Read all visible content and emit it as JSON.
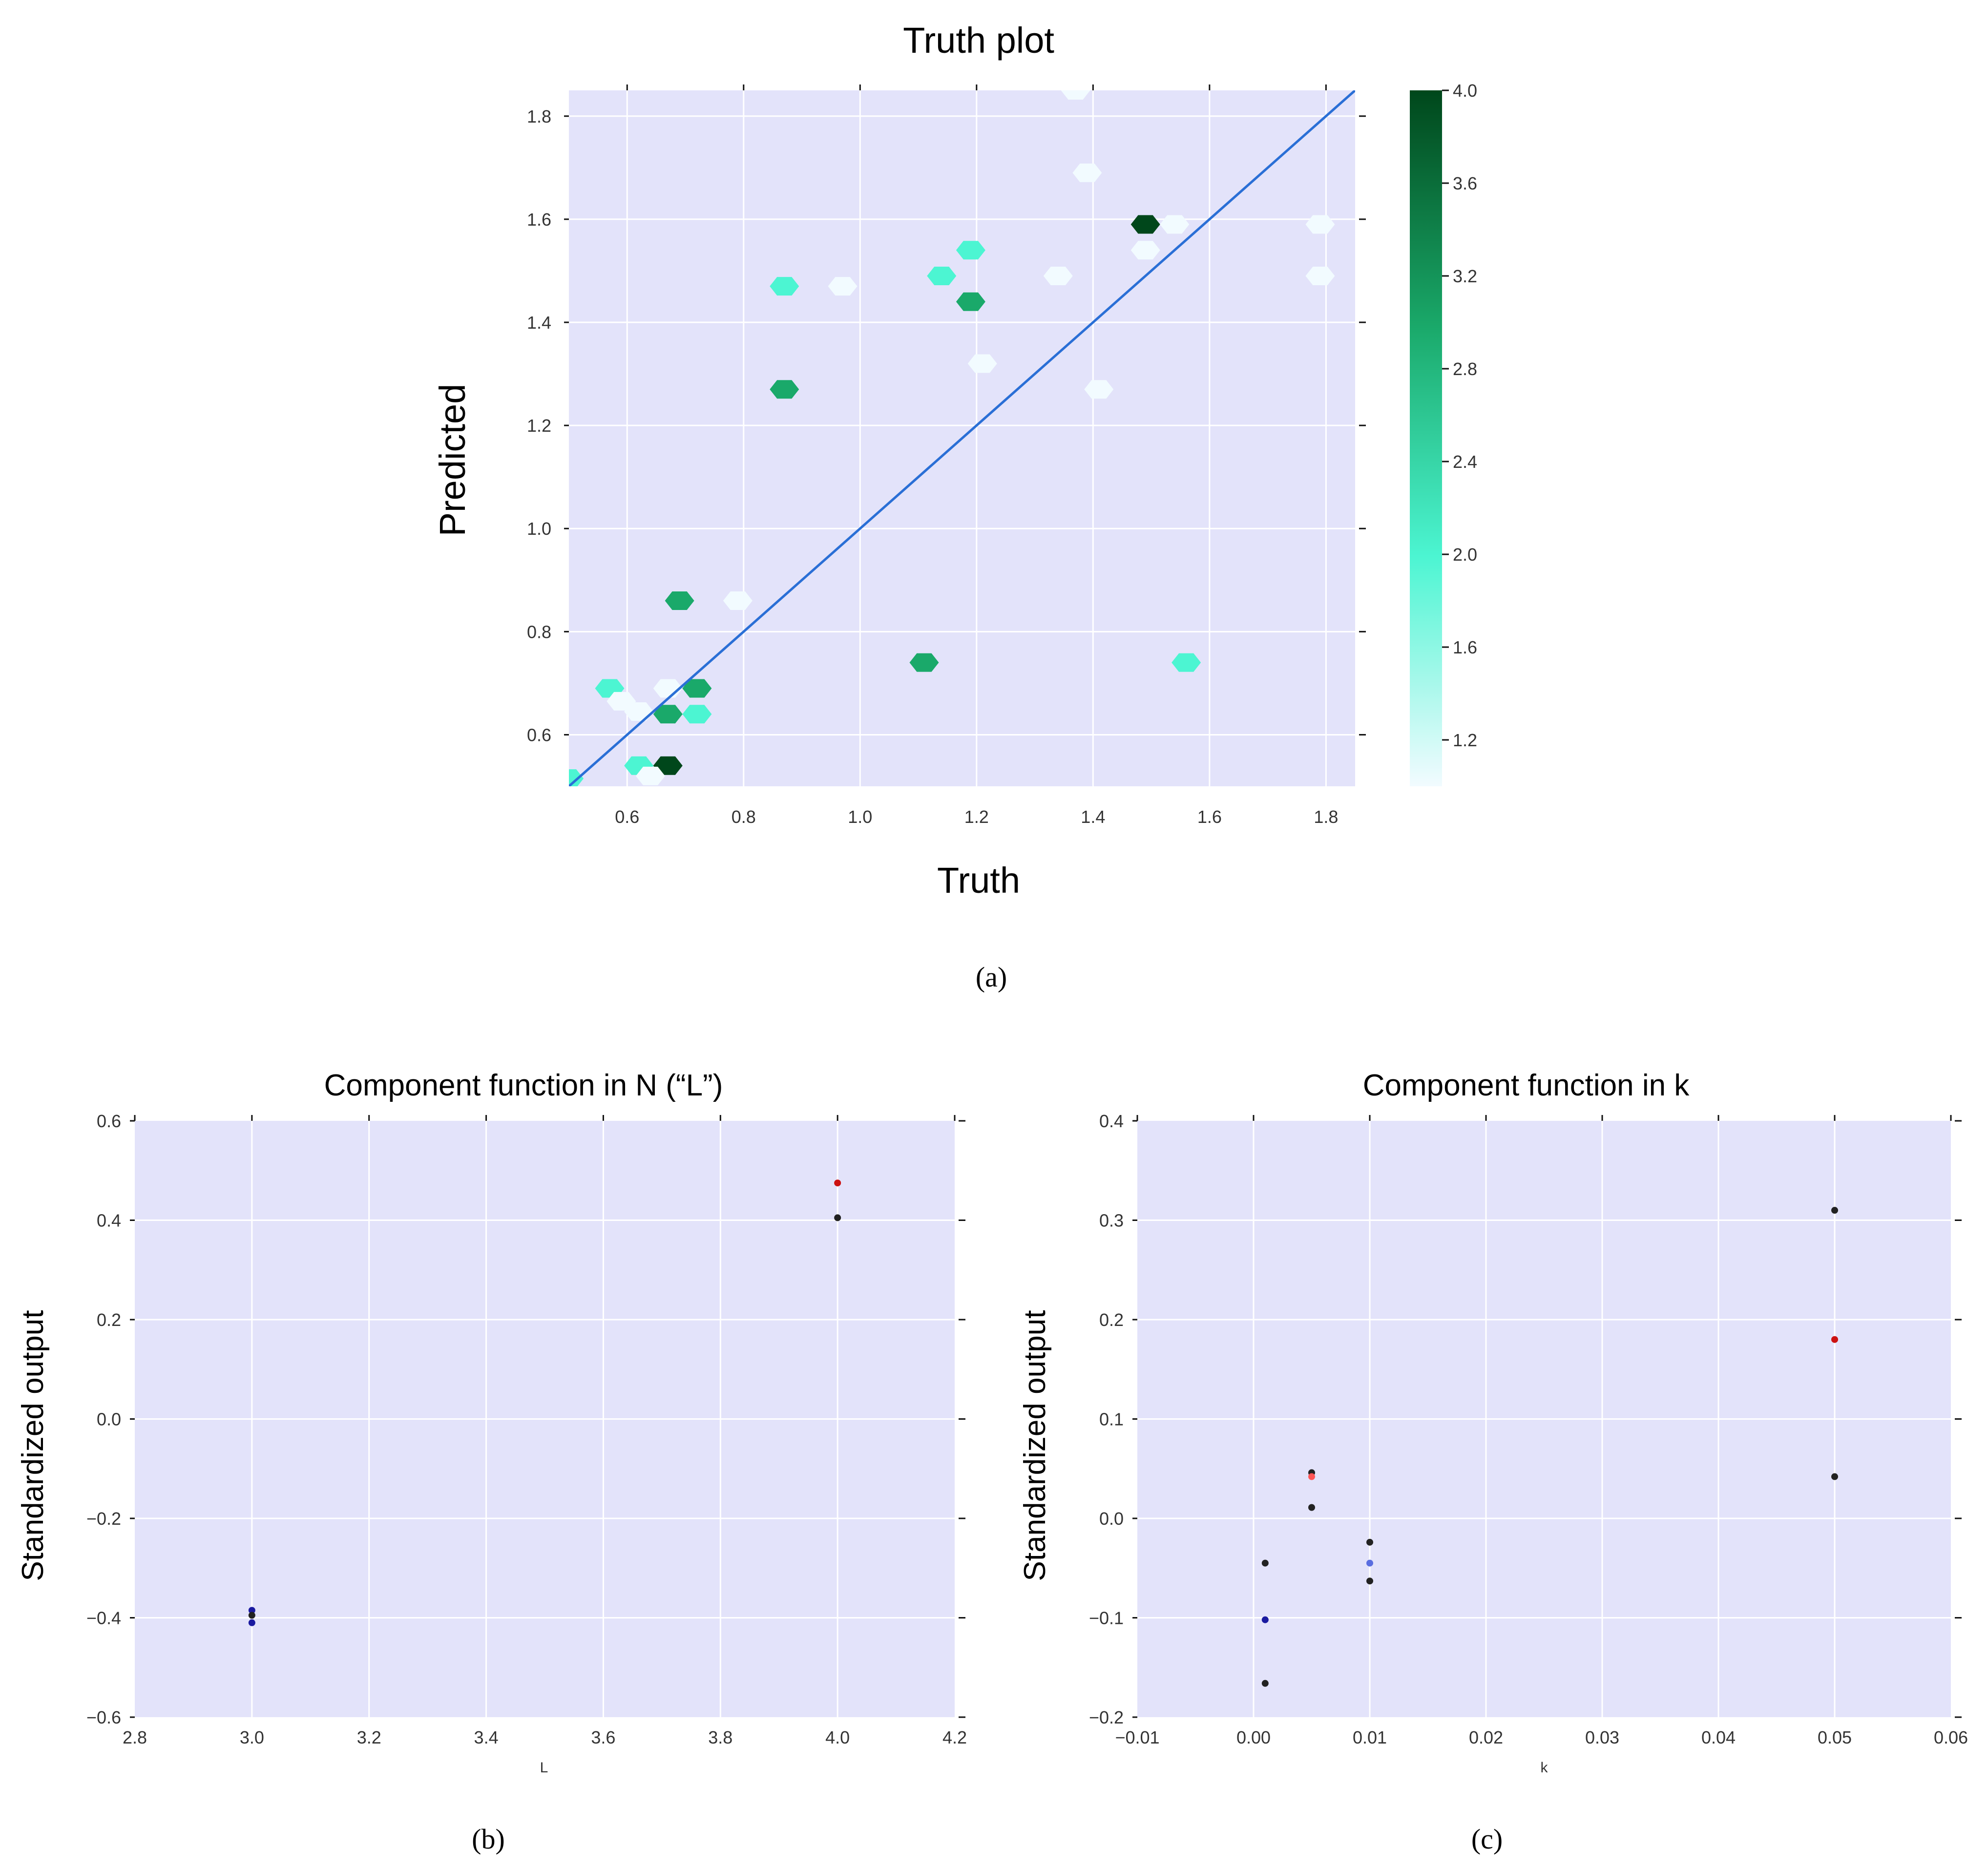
{
  "colors": {
    "plot_bg": "#e3e3fa",
    "grid": "#ffffff",
    "diag_line": "#2a6fd6",
    "cmap_low": "#f2fbff",
    "cmap_mid": "#4cf5d2",
    "cmap_q": "#1aa96a",
    "cmap_high": "#00471b",
    "pt_red": "#cc1111",
    "pt_black": "#222222",
    "pt_blue": "#1a1aa0",
    "pt_lightblue": "#5a6ee0",
    "pt_pink": "#ff5555"
  },
  "chart_data": [
    {
      "id": "a",
      "type": "hexbin",
      "title": "Truth plot",
      "xlabel": "Truth",
      "ylabel": "Predicted",
      "caption": "(a)",
      "xlim": [
        0.5,
        1.85
      ],
      "ylim": [
        0.5,
        1.85
      ],
      "xticks": [
        "0.6",
        "0.8",
        "1.0",
        "1.2",
        "1.4",
        "1.6",
        "1.8"
      ],
      "yticks": [
        "0.6",
        "0.8",
        "1.0",
        "1.2",
        "1.4",
        "1.6",
        "1.8"
      ],
      "identity_line": true,
      "colorbar": {
        "min": 1.0,
        "max": 4.0,
        "ticks": [
          "1.2",
          "1.6",
          "2.0",
          "2.4",
          "2.8",
          "3.2",
          "3.6",
          "4.0"
        ]
      },
      "points": [
        {
          "x": 1.37,
          "y": 1.85,
          "count": 1
        },
        {
          "x": 1.39,
          "y": 1.69,
          "count": 1
        },
        {
          "x": 1.49,
          "y": 1.59,
          "count": 4
        },
        {
          "x": 1.54,
          "y": 1.59,
          "count": 1
        },
        {
          "x": 1.79,
          "y": 1.59,
          "count": 1
        },
        {
          "x": 1.49,
          "y": 1.54,
          "count": 1
        },
        {
          "x": 1.19,
          "y": 1.54,
          "count": 2
        },
        {
          "x": 1.14,
          "y": 1.49,
          "count": 2
        },
        {
          "x": 1.34,
          "y": 1.49,
          "count": 1
        },
        {
          "x": 1.79,
          "y": 1.49,
          "count": 1
        },
        {
          "x": 0.87,
          "y": 1.47,
          "count": 2
        },
        {
          "x": 0.97,
          "y": 1.47,
          "count": 1
        },
        {
          "x": 1.19,
          "y": 1.44,
          "count": 3
        },
        {
          "x": 1.21,
          "y": 1.32,
          "count": 1
        },
        {
          "x": 0.87,
          "y": 1.27,
          "count": 3
        },
        {
          "x": 1.41,
          "y": 1.27,
          "count": 1
        },
        {
          "x": 0.69,
          "y": 0.86,
          "count": 3
        },
        {
          "x": 0.79,
          "y": 0.86,
          "count": 1
        },
        {
          "x": 1.11,
          "y": 0.74,
          "count": 3
        },
        {
          "x": 1.56,
          "y": 0.74,
          "count": 2
        },
        {
          "x": 0.57,
          "y": 0.69,
          "count": 2
        },
        {
          "x": 0.67,
          "y": 0.69,
          "count": 1
        },
        {
          "x": 0.72,
          "y": 0.69,
          "count": 3
        },
        {
          "x": 0.59,
          "y": 0.665,
          "count": 1
        },
        {
          "x": 0.62,
          "y": 0.645,
          "count": 1
        },
        {
          "x": 0.67,
          "y": 0.64,
          "count": 3
        },
        {
          "x": 0.72,
          "y": 0.64,
          "count": 2
        },
        {
          "x": 0.62,
          "y": 0.54,
          "count": 2
        },
        {
          "x": 0.67,
          "y": 0.54,
          "count": 4
        },
        {
          "x": 0.64,
          "y": 0.52,
          "count": 1
        },
        {
          "x": 0.5,
          "y": 0.515,
          "count": 2
        }
      ]
    },
    {
      "id": "b",
      "type": "scatter",
      "title": "Component function in N (“L”)",
      "xlabel": "L",
      "ylabel": "Standardized output",
      "caption": "(b)",
      "xlim": [
        2.8,
        4.2
      ],
      "ylim": [
        -0.6,
        0.6
      ],
      "xticks": [
        "2.8",
        "3.0",
        "3.2",
        "3.4",
        "3.6",
        "3.8",
        "4.0",
        "4.2"
      ],
      "yticks": [
        "−0.6",
        "−0.4",
        "−0.2",
        "0.0",
        "0.2",
        "0.4",
        "0.6"
      ],
      "points": [
        {
          "x": 4.0,
          "y": 0.475,
          "color": "pt_red"
        },
        {
          "x": 4.0,
          "y": 0.405,
          "color": "pt_black"
        },
        {
          "x": 3.0,
          "y": -0.385,
          "color": "pt_blue"
        },
        {
          "x": 3.0,
          "y": -0.395,
          "color": "pt_black"
        },
        {
          "x": 3.0,
          "y": -0.41,
          "color": "pt_blue"
        }
      ]
    },
    {
      "id": "c",
      "type": "scatter",
      "title": "Component function in k",
      "xlabel": "k",
      "ylabel": "Standardized output",
      "caption": "(c)",
      "xlim": [
        -0.01,
        0.06
      ],
      "ylim": [
        -0.2,
        0.4
      ],
      "xticks": [
        "−0.01",
        "0.00",
        "0.01",
        "0.02",
        "0.03",
        "0.04",
        "0.05",
        "0.06"
      ],
      "yticks": [
        "−0.2",
        "−0.1",
        "0.0",
        "0.1",
        "0.2",
        "0.3",
        "0.4"
      ],
      "points": [
        {
          "x": 0.05,
          "y": 0.31,
          "color": "pt_black"
        },
        {
          "x": 0.05,
          "y": 0.18,
          "color": "pt_red"
        },
        {
          "x": 0.05,
          "y": 0.042,
          "color": "pt_black"
        },
        {
          "x": 0.005,
          "y": 0.046,
          "color": "pt_black"
        },
        {
          "x": 0.005,
          "y": 0.042,
          "color": "pt_pink"
        },
        {
          "x": 0.005,
          "y": 0.011,
          "color": "pt_black"
        },
        {
          "x": 0.001,
          "y": -0.045,
          "color": "pt_black"
        },
        {
          "x": 0.001,
          "y": -0.102,
          "color": "pt_blue"
        },
        {
          "x": 0.001,
          "y": -0.166,
          "color": "pt_black"
        },
        {
          "x": 0.01,
          "y": -0.024,
          "color": "pt_black"
        },
        {
          "x": 0.01,
          "y": -0.045,
          "color": "pt_lightblue"
        },
        {
          "x": 0.01,
          "y": -0.063,
          "color": "pt_black"
        }
      ]
    }
  ]
}
